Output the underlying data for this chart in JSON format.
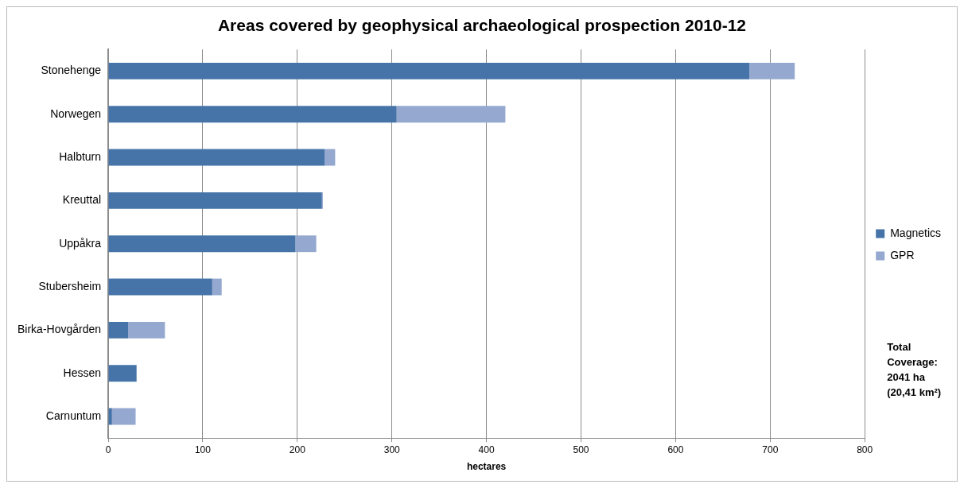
{
  "chart_data": {
    "type": "bar",
    "orientation": "horizontal",
    "stacked": true,
    "title": "Areas covered by geophysical archaeological prospection 2010-12",
    "xlabel": "hectares",
    "categories": [
      "Stonehenge",
      "Norwegen",
      "Halbturn",
      "Kreuttal",
      "Uppåkra",
      "Stubersheim",
      "Birka-Hovgården",
      "Hessen",
      "Carnuntum"
    ],
    "series": [
      {
        "name": "Magnetics",
        "color": "#4674a8",
        "values": [
          678,
          305,
          229,
          226,
          198,
          110,
          21,
          30,
          4
        ]
      },
      {
        "name": "GPR",
        "color": "#95a9d0",
        "values": [
          48,
          115,
          11,
          1,
          22,
          10,
          39,
          0,
          25
        ]
      }
    ],
    "xlim": [
      0,
      800
    ],
    "xticks": [
      0,
      100,
      200,
      300,
      400,
      500,
      600,
      700,
      800
    ],
    "grid": "x",
    "legend": "right",
    "annotations": [
      "Total Coverage: 2041 ha (20,41 km²)"
    ]
  }
}
